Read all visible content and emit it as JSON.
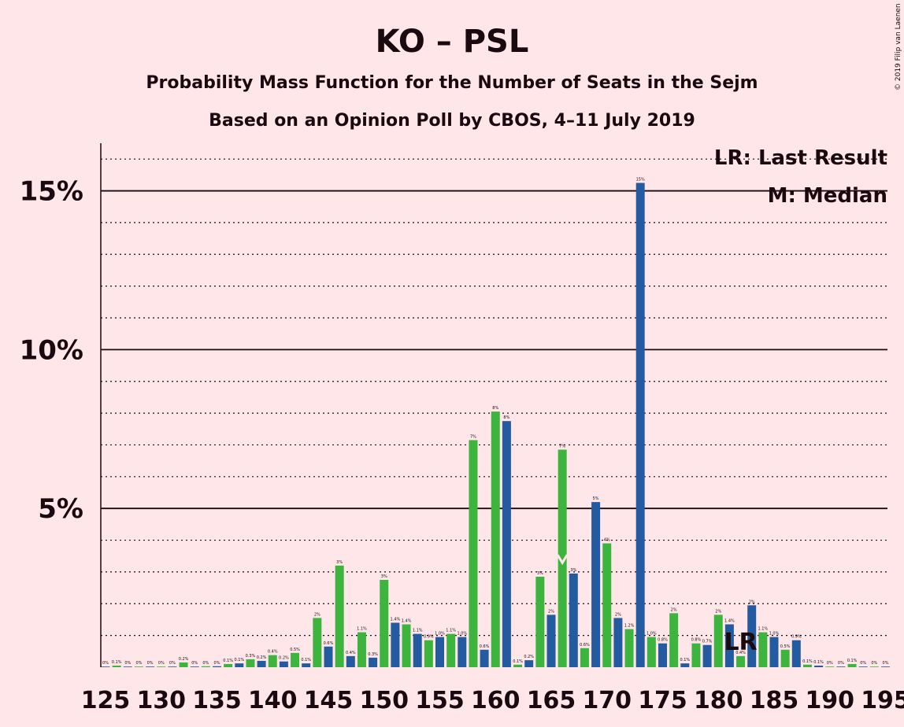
{
  "title": "KO – PSL",
  "subtitle1": "Probability Mass Function for the Number of Seats in the Sejm",
  "subtitle2": "Based on an Opinion Poll by CBOS, 4–11 July 2019",
  "copyright": "© 2019 Filip van Laenen",
  "legend": {
    "lr": "LR: Last Result",
    "m": "M: Median"
  },
  "markers": {
    "last_result_label": "LR",
    "last_result_seat": 182,
    "median_seat": 166
  },
  "colors": {
    "background": "#FFE6E9",
    "blue": "#245BA0",
    "green": "#3DB43D",
    "text": "#1a0a10"
  },
  "chart_data": {
    "type": "bar",
    "title": "KO – PSL",
    "ylim": [
      0,
      16.5
    ],
    "y_ticks": [
      {
        "value": 5,
        "label": "5%"
      },
      {
        "value": 10,
        "label": "10%"
      },
      {
        "value": 15,
        "label": "15%"
      }
    ],
    "x_ticks": [
      125,
      130,
      135,
      140,
      145,
      150,
      155,
      160,
      165,
      170,
      175,
      180,
      185,
      190,
      195
    ],
    "bars": [
      {
        "seat": 125,
        "value": 0.02,
        "label": "0%"
      },
      {
        "seat": 126,
        "value": 0.05,
        "label": "0.1%"
      },
      {
        "seat": 127,
        "value": 0.02,
        "label": "0%"
      },
      {
        "seat": 128,
        "value": 0.02,
        "label": "0%"
      },
      {
        "seat": 129,
        "value": 0.02,
        "label": "0%"
      },
      {
        "seat": 130,
        "value": 0.02,
        "label": "0%"
      },
      {
        "seat": 131,
        "value": 0.02,
        "label": "0%"
      },
      {
        "seat": 132,
        "value": 0.15,
        "label": "0.2%"
      },
      {
        "seat": 133,
        "value": 0.02,
        "label": "0%"
      },
      {
        "seat": 134,
        "value": 0.03,
        "label": "0%"
      },
      {
        "seat": 135,
        "value": 0.03,
        "label": "0%"
      },
      {
        "seat": 136,
        "value": 0.1,
        "label": "0.1%"
      },
      {
        "seat": 137,
        "value": 0.12,
        "label": "0.1%"
      },
      {
        "seat": 138,
        "value": 0.25,
        "label": "0.3%"
      },
      {
        "seat": 139,
        "value": 0.2,
        "label": "0.2%"
      },
      {
        "seat": 140,
        "value": 0.38,
        "label": "0.4%"
      },
      {
        "seat": 141,
        "value": 0.18,
        "label": "0.2%"
      },
      {
        "seat": 142,
        "value": 0.45,
        "label": "0.5%"
      },
      {
        "seat": 143,
        "value": 0.12,
        "label": "0.1%"
      },
      {
        "seat": 144,
        "value": 1.55,
        "label": "2%"
      },
      {
        "seat": 145,
        "value": 0.65,
        "label": "0.6%"
      },
      {
        "seat": 146,
        "value": 3.2,
        "label": "3%"
      },
      {
        "seat": 147,
        "value": 0.35,
        "label": "0.4%"
      },
      {
        "seat": 148,
        "value": 1.1,
        "label": "1.1%"
      },
      {
        "seat": 149,
        "value": 0.3,
        "label": "0.3%"
      },
      {
        "seat": 150,
        "value": 2.75,
        "label": "3%"
      },
      {
        "seat": 151,
        "value": 1.4,
        "label": "1.4%"
      },
      {
        "seat": 152,
        "value": 1.35,
        "label": "1.4%"
      },
      {
        "seat": 153,
        "value": 1.05,
        "label": "1.1%"
      },
      {
        "seat": 154,
        "value": 0.85,
        "label": "0.9%"
      },
      {
        "seat": 155,
        "value": 0.95,
        "label": "1.0%"
      },
      {
        "seat": 156,
        "value": 1.05,
        "label": "1.1%"
      },
      {
        "seat": 157,
        "value": 0.95,
        "label": "1.0%"
      },
      {
        "seat": 158,
        "value": 7.15,
        "label": "7%"
      },
      {
        "seat": 159,
        "value": 0.55,
        "label": "0.6%"
      },
      {
        "seat": 160,
        "value": 8.05,
        "label": "8%"
      },
      {
        "seat": 161,
        "value": 7.75,
        "label": "8%"
      },
      {
        "seat": 162,
        "value": 0.08,
        "label": "0.1%"
      },
      {
        "seat": 163,
        "value": 0.22,
        "label": "0.2%"
      },
      {
        "seat": 164,
        "value": 2.85,
        "label": "3%"
      },
      {
        "seat": 165,
        "value": 1.65,
        "label": "2%"
      },
      {
        "seat": 166,
        "value": 6.85,
        "label": "7%"
      },
      {
        "seat": 167,
        "value": 2.95,
        "label": "3%"
      },
      {
        "seat": 168,
        "value": 0.6,
        "label": "0.6%"
      },
      {
        "seat": 169,
        "value": 5.2,
        "label": "5%"
      },
      {
        "seat": 170,
        "value": 3.9,
        "label": "4%"
      },
      {
        "seat": 171,
        "value": 1.55,
        "label": "2%"
      },
      {
        "seat": 172,
        "value": 1.2,
        "label": "1.2%"
      },
      {
        "seat": 173,
        "value": 15.25,
        "label": "15%"
      },
      {
        "seat": 174,
        "value": 0.95,
        "label": "1.0%"
      },
      {
        "seat": 175,
        "value": 0.75,
        "label": "0.8%"
      },
      {
        "seat": 176,
        "value": 1.7,
        "label": "2%"
      },
      {
        "seat": 177,
        "value": 0.12,
        "label": "0.1%"
      },
      {
        "seat": 178,
        "value": 0.75,
        "label": "0.8%"
      },
      {
        "seat": 179,
        "value": 0.7,
        "label": "0.7%"
      },
      {
        "seat": 180,
        "value": 1.65,
        "label": "2%"
      },
      {
        "seat": 181,
        "value": 1.35,
        "label": "1.4%"
      },
      {
        "seat": 182,
        "value": 0.35,
        "label": "0.4%"
      },
      {
        "seat": 183,
        "value": 1.95,
        "label": "2%"
      },
      {
        "seat": 184,
        "value": 1.1,
        "label": "1.1%"
      },
      {
        "seat": 185,
        "value": 0.95,
        "label": "1.0%"
      },
      {
        "seat": 186,
        "value": 0.55,
        "label": "0.5%"
      },
      {
        "seat": 187,
        "value": 0.85,
        "label": "0.9%"
      },
      {
        "seat": 188,
        "value": 0.08,
        "label": "0.1%"
      },
      {
        "seat": 189,
        "value": 0.05,
        "label": "0.1%"
      },
      {
        "seat": 190,
        "value": 0.02,
        "label": "0%"
      },
      {
        "seat": 191,
        "value": 0.02,
        "label": "0%"
      },
      {
        "seat": 192,
        "value": 0.1,
        "label": "0.1%"
      },
      {
        "seat": 193,
        "value": 0.02,
        "label": "0%"
      },
      {
        "seat": 194,
        "value": 0.02,
        "label": "0%"
      },
      {
        "seat": 195,
        "value": 0.02,
        "label": "0%"
      }
    ]
  }
}
